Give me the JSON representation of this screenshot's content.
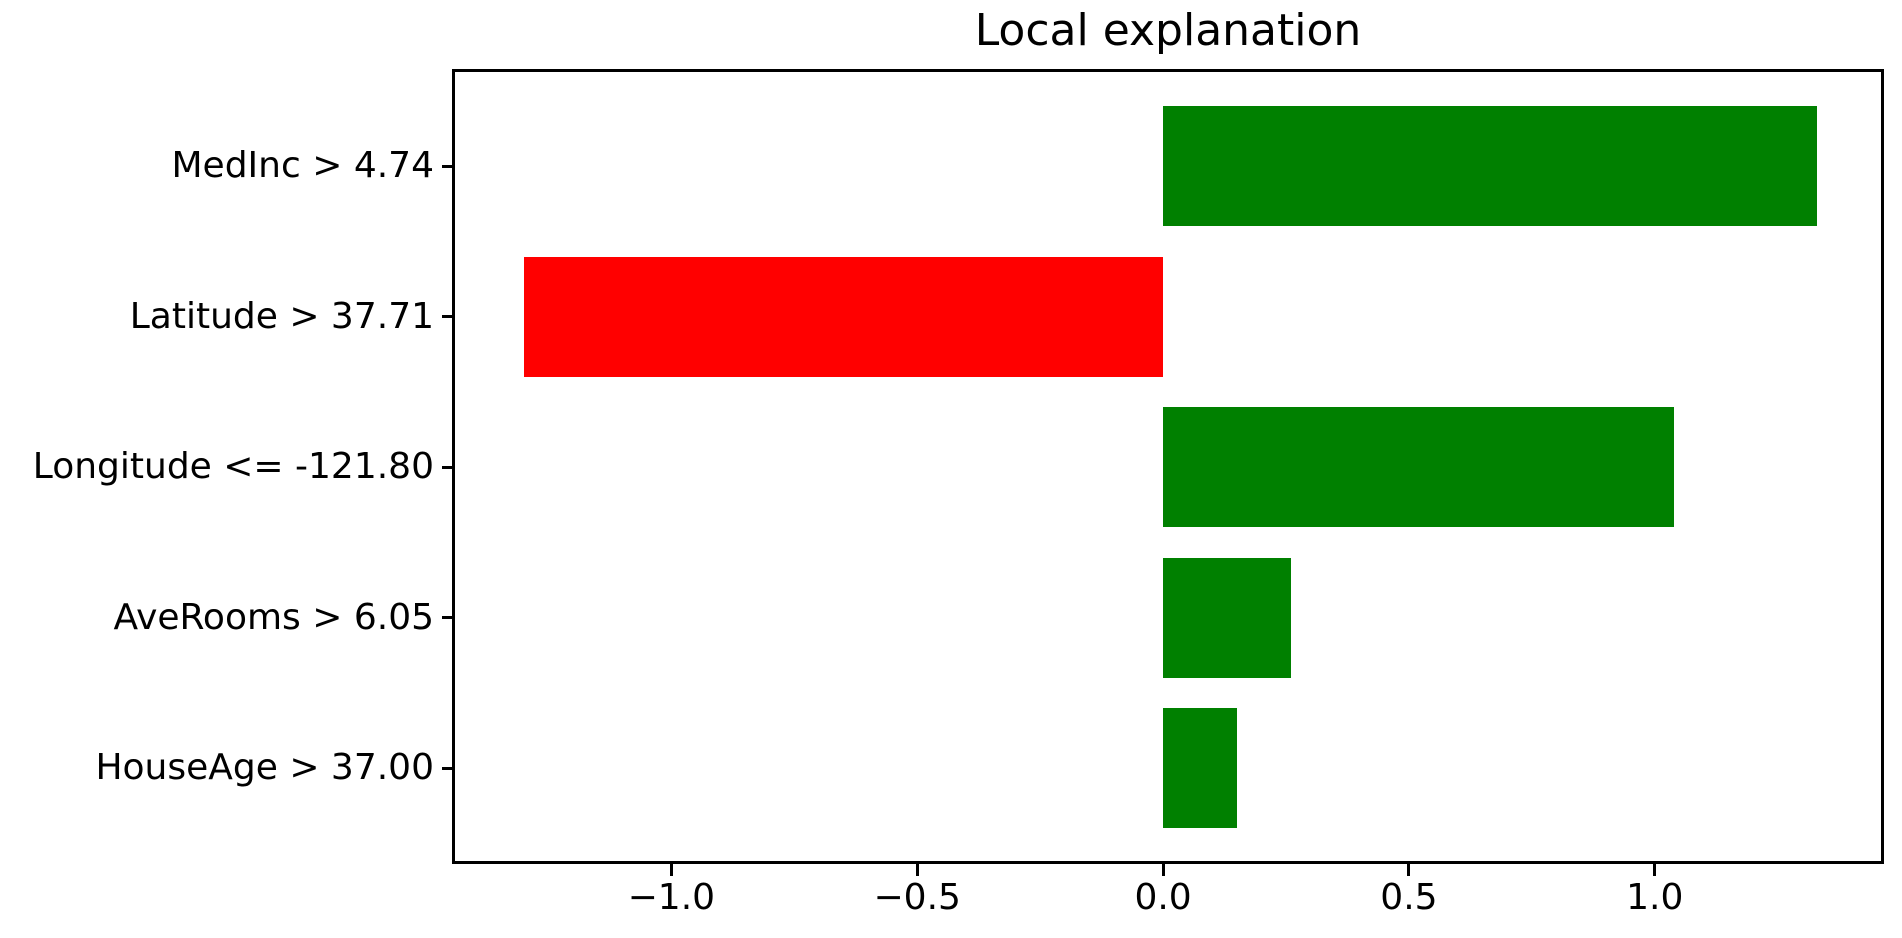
{
  "chart_data": {
    "type": "bar",
    "orientation": "horizontal",
    "title": "Local explanation",
    "categories": [
      "MedInc > 4.74",
      "Latitude > 37.71",
      "Longitude <= -121.80",
      "AveRooms > 6.05",
      "HouseAge > 37.00"
    ],
    "values": [
      1.33,
      -1.3,
      1.04,
      0.26,
      0.15
    ],
    "bar_colors": [
      "#008000",
      "#ff0000",
      "#008000",
      "#008000",
      "#008000"
    ],
    "positive_color": "#008000",
    "negative_color": "#ff0000",
    "x_ticks": [
      -1.0,
      -0.5,
      0.0,
      0.5,
      1.0
    ],
    "x_tick_labels": [
      "−1.0",
      "−0.5",
      "0.0",
      "0.5",
      "1.0"
    ],
    "xlim": [
      -1.44,
      1.46
    ],
    "xlabel": "",
    "ylabel": "",
    "grid": false,
    "legend": "none",
    "background_color": "#ffffff",
    "axis_color": "#000000",
    "text_color": "#000000"
  }
}
